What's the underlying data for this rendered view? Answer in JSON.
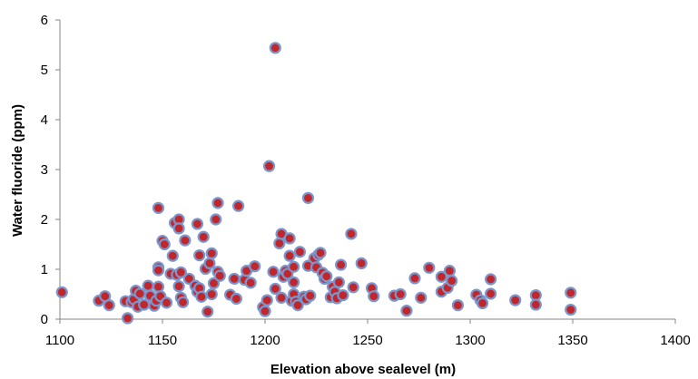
{
  "chart_data": {
    "type": "scatter",
    "title": "",
    "xlabel": "Elevation above sealevel (m)",
    "ylabel": "Water fluoride (ppm)",
    "xlim": [
      1100,
      1400
    ],
    "ylim": [
      0,
      6
    ],
    "x_ticks": [
      1100,
      1150,
      1200,
      1250,
      1300,
      1350,
      1400
    ],
    "y_ticks": [
      0,
      1,
      2,
      3,
      4,
      5,
      6
    ],
    "grid": false,
    "legend": "none",
    "marker": {
      "fill": "#c0272d",
      "stroke": "#7a96cc"
    },
    "axis_color": "#868686",
    "series": [
      {
        "points": [
          [
            1101,
            0.54
          ],
          [
            1119,
            0.37
          ],
          [
            1122,
            0.46
          ],
          [
            1124,
            0.28
          ],
          [
            1132,
            0.36
          ],
          [
            1133,
            0.02
          ],
          [
            1135,
            0.34
          ],
          [
            1136,
            0.4
          ],
          [
            1137,
            0.57
          ],
          [
            1138,
            0.25
          ],
          [
            1139,
            0.51
          ],
          [
            1141,
            0.29
          ],
          [
            1143,
            0.67
          ],
          [
            1144,
            0.47
          ],
          [
            1146,
            0.27
          ],
          [
            1147,
            0.37
          ],
          [
            1148,
            2.23
          ],
          [
            1148,
            1.04
          ],
          [
            1148,
            0.98
          ],
          [
            1148,
            0.65
          ],
          [
            1149,
            0.46
          ],
          [
            1150,
            1.57
          ],
          [
            1151,
            1.5
          ],
          [
            1152,
            0.33
          ],
          [
            1154,
            0.91
          ],
          [
            1155,
            1.27
          ],
          [
            1156,
            1.93
          ],
          [
            1157,
            0.89
          ],
          [
            1158,
            2.0
          ],
          [
            1158,
            1.82
          ],
          [
            1158,
            0.66
          ],
          [
            1159,
            0.94
          ],
          [
            1159,
            0.43
          ],
          [
            1160,
            0.34
          ],
          [
            1161,
            1.58
          ],
          [
            1163,
            0.81
          ],
          [
            1166,
            0.67
          ],
          [
            1167,
            0.55
          ],
          [
            1167,
            1.91
          ],
          [
            1168,
            1.28
          ],
          [
            1168,
            0.62
          ],
          [
            1169,
            0.45
          ],
          [
            1170,
            1.65
          ],
          [
            1171,
            1.01
          ],
          [
            1172,
            0.15
          ],
          [
            1173,
            1.12
          ],
          [
            1174,
            1.32
          ],
          [
            1174,
            0.5
          ],
          [
            1175,
            0.72
          ],
          [
            1176,
            2.0
          ],
          [
            1177,
            2.33
          ],
          [
            1177,
            0.95
          ],
          [
            1178,
            0.87
          ],
          [
            1183,
            0.49
          ],
          [
            1185,
            0.81
          ],
          [
            1186,
            0.41
          ],
          [
            1187,
            2.27
          ],
          [
            1190,
            0.79
          ],
          [
            1191,
            0.97
          ],
          [
            1193,
            0.73
          ],
          [
            1195,
            1.06
          ],
          [
            1199,
            0.24
          ],
          [
            1200,
            0.16
          ],
          [
            1201,
            0.38
          ],
          [
            1202,
            3.07
          ],
          [
            1204,
            0.95
          ],
          [
            1205,
            0.61
          ],
          [
            1205,
            5.44
          ],
          [
            1207,
            1.52
          ],
          [
            1208,
            1.71
          ],
          [
            1208,
            0.43
          ],
          [
            1209,
            0.85
          ],
          [
            1210,
            0.97
          ],
          [
            1211,
            0.91
          ],
          [
            1212,
            1.62
          ],
          [
            1212,
            1.27
          ],
          [
            1213,
            0.37
          ],
          [
            1214,
            1.05
          ],
          [
            1214,
            0.74
          ],
          [
            1214,
            0.5
          ],
          [
            1215,
            0.35
          ],
          [
            1216,
            0.28
          ],
          [
            1217,
            1.35
          ],
          [
            1219,
            0.45
          ],
          [
            1220,
            0.4
          ],
          [
            1221,
            2.43
          ],
          [
            1221,
            1.07
          ],
          [
            1222,
            0.47
          ],
          [
            1224,
            1.22
          ],
          [
            1225,
            1.04
          ],
          [
            1226,
            1.29
          ],
          [
            1227,
            1.33
          ],
          [
            1228,
            0.93
          ],
          [
            1229,
            0.81
          ],
          [
            1230,
            0.86
          ],
          [
            1232,
            0.44
          ],
          [
            1233,
            0.65
          ],
          [
            1234,
            0.55
          ],
          [
            1235,
            0.42
          ],
          [
            1236,
            0.74
          ],
          [
            1237,
            1.09
          ],
          [
            1238,
            0.48
          ],
          [
            1242,
            1.71
          ],
          [
            1243,
            0.64
          ],
          [
            1247,
            1.12
          ],
          [
            1252,
            0.62
          ],
          [
            1253,
            0.46
          ],
          [
            1263,
            0.47
          ],
          [
            1266,
            0.5
          ],
          [
            1269,
            0.17
          ],
          [
            1273,
            0.82
          ],
          [
            1276,
            0.43
          ],
          [
            1280,
            1.03
          ],
          [
            1286,
            0.55
          ],
          [
            1286,
            0.85
          ],
          [
            1289,
            0.63
          ],
          [
            1290,
            0.97
          ],
          [
            1291,
            0.77
          ],
          [
            1294,
            0.28
          ],
          [
            1303,
            0.49
          ],
          [
            1305,
            0.38
          ],
          [
            1306,
            0.32
          ],
          [
            1310,
            0.51
          ],
          [
            1310,
            0.8
          ],
          [
            1322,
            0.38
          ],
          [
            1332,
            0.48
          ],
          [
            1332,
            0.29
          ],
          [
            1349,
            0.53
          ],
          [
            1349,
            0.19
          ]
        ]
      }
    ]
  }
}
